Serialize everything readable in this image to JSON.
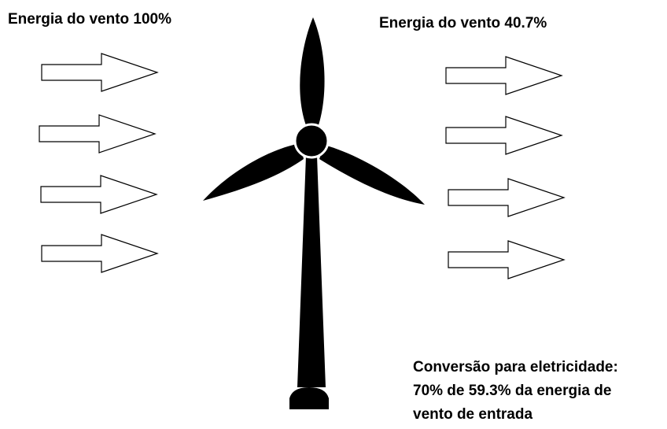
{
  "labels": {
    "wind_in": "Energia do vento 100%",
    "wind_out": "Energia do vento 40.7%"
  },
  "conversion": {
    "lines": [
      "Conversão para eletricidade:",
      "70% de 59.3% da energia de",
      "vento de entrada"
    ]
  }
}
